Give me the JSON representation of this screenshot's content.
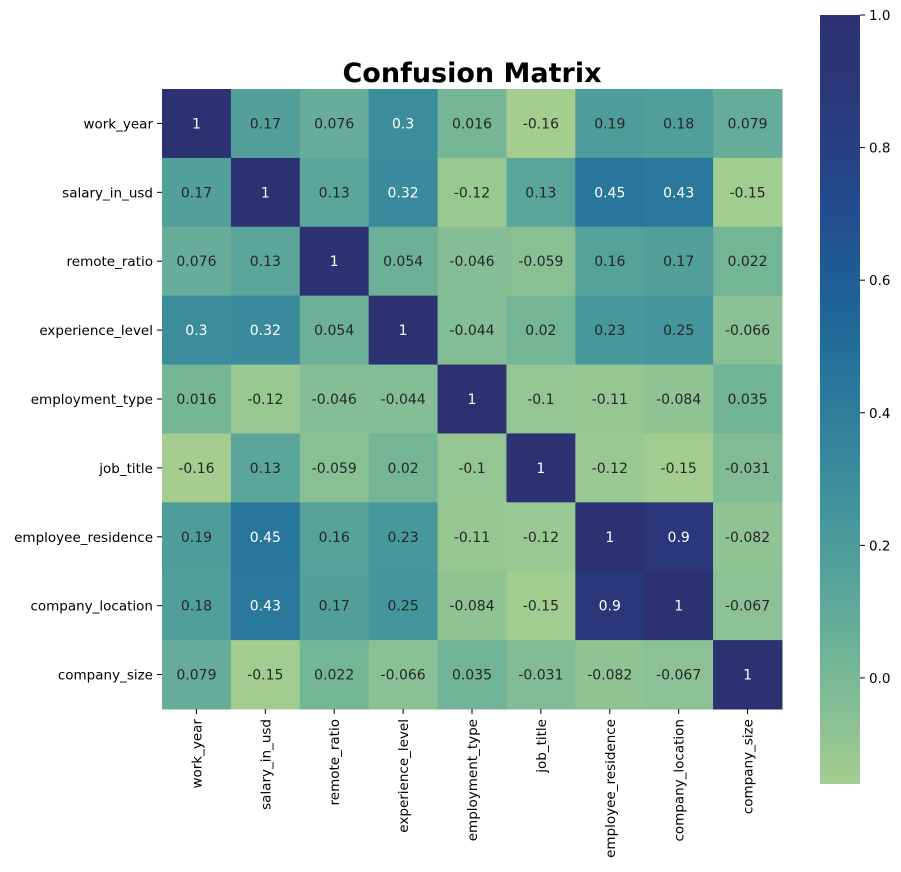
{
  "chart_data": {
    "type": "heatmap",
    "title": "Confusion Matrix",
    "xlabel": "",
    "ylabel": "",
    "labels": [
      "work_year",
      "salary_in_usd",
      "remote_ratio",
      "experience_level",
      "employment_type",
      "job_title",
      "employee_residence",
      "company_location",
      "company_size"
    ],
    "values": [
      [
        1,
        0.17,
        0.076,
        0.3,
        0.016,
        -0.16,
        0.19,
        0.18,
        0.079
      ],
      [
        0.17,
        1,
        0.13,
        0.32,
        -0.12,
        0.13,
        0.45,
        0.43,
        -0.15
      ],
      [
        0.076,
        0.13,
        1,
        0.054,
        -0.046,
        -0.059,
        0.16,
        0.17,
        0.022
      ],
      [
        0.3,
        0.32,
        0.054,
        1,
        -0.044,
        0.02,
        0.23,
        0.25,
        -0.066
      ],
      [
        0.016,
        -0.12,
        -0.046,
        -0.044,
        1,
        -0.1,
        -0.11,
        -0.084,
        0.035
      ],
      [
        -0.16,
        0.13,
        -0.059,
        0.02,
        -0.1,
        1,
        -0.12,
        -0.15,
        -0.031
      ],
      [
        0.19,
        0.45,
        0.16,
        0.23,
        -0.11,
        -0.12,
        1,
        0.9,
        -0.082
      ],
      [
        0.18,
        0.43,
        0.17,
        0.25,
        -0.084,
        -0.15,
        0.9,
        1,
        -0.067
      ],
      [
        0.079,
        -0.15,
        0.022,
        -0.066,
        0.035,
        -0.031,
        -0.082,
        -0.067,
        1
      ]
    ],
    "value_range": [
      -0.16,
      1
    ],
    "colorbar": {
      "ticks": [
        0.0,
        0.2,
        0.4,
        0.6,
        0.8,
        1.0
      ],
      "tick_labels": [
        "0.0",
        "0.2",
        "0.4",
        "0.6",
        "0.8",
        "1.0"
      ]
    },
    "colormap": {
      "name": "crest",
      "stops": [
        "#a5cd90",
        "#7cba96",
        "#5aa69a",
        "#3f919c",
        "#2b7b9c",
        "#1e6398",
        "#234b8f",
        "#293a7d",
        "#2c3172"
      ]
    }
  }
}
